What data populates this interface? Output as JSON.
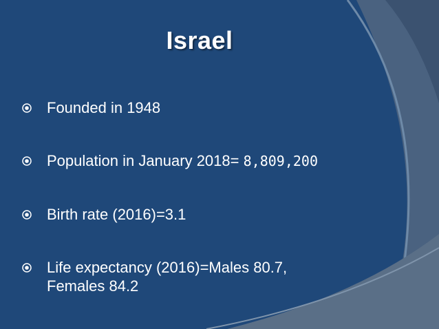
{
  "slide": {
    "title": "Israel",
    "bullets": [
      {
        "text": "Founded in 1948"
      },
      {
        "text": "Population in January 2018=",
        "value": "8,809,200"
      },
      {
        "text": "Birth rate (2016)=3.1"
      },
      {
        "text_line1": "Life expectancy (2016)=Males 80.7,",
        "text_line2": "Females 84.2"
      }
    ]
  },
  "colors": {
    "background": "#1d4575",
    "decor_light": "#5a6f87",
    "decor_mid": "#3a5676",
    "text": "#ffffff"
  },
  "icons": {
    "bullet": "circle-dot-icon"
  }
}
